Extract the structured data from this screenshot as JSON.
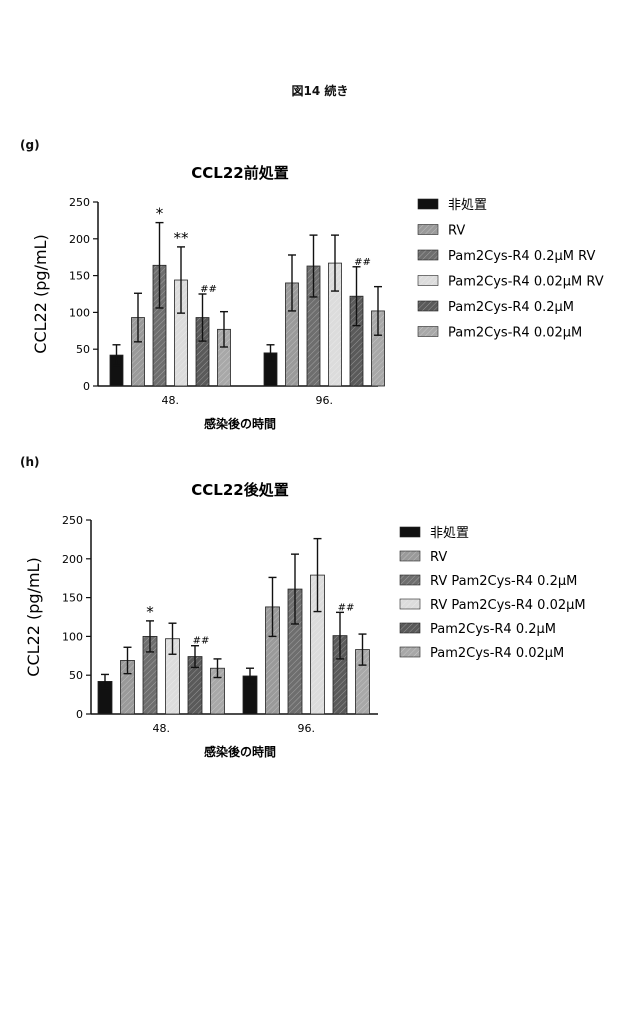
{
  "figure_title": "図14 続き",
  "panels": [
    {
      "label": "(g)"
    },
    {
      "label": "(h)"
    }
  ],
  "chart_data": [
    {
      "type": "bar",
      "title": "CCL22前処置",
      "xlabel": "感染後の時間",
      "ylabel": "CCL22 (pg/mL)",
      "ylim": [
        0,
        250
      ],
      "yticks": [
        0,
        50,
        100,
        150,
        200,
        250
      ],
      "categories": [
        "48.",
        "96."
      ],
      "legend_position": "right",
      "series": [
        {
          "name": "非処置",
          "values": [
            42,
            45
          ],
          "errors": [
            14,
            11
          ],
          "fill": "#111111",
          "annotations": [
            "",
            ""
          ]
        },
        {
          "name": "RV",
          "values": [
            93,
            140
          ],
          "errors": [
            33,
            38
          ],
          "fill": "#9a9a9a",
          "annotations": [
            "",
            ""
          ]
        },
        {
          "name": "Pam2Cys-R4 0.2μM RV",
          "values": [
            164,
            163
          ],
          "errors": [
            58,
            42
          ],
          "fill": "#6e6e6e",
          "annotations": [
            "*",
            ""
          ]
        },
        {
          "name": "Pam2Cys-R4 0.02μM RV",
          "values": [
            144,
            167
          ],
          "errors": [
            45,
            38
          ],
          "fill": "#dcdcdc",
          "annotations": [
            "**",
            ""
          ]
        },
        {
          "name": "Pam2Cys-R4 0.2μM",
          "values": [
            93,
            122
          ],
          "errors": [
            32,
            40
          ],
          "fill": "#5a5a5a",
          "annotations": [
            "##",
            "##"
          ]
        },
        {
          "name": "Pam2Cys-R4 0.02μM",
          "values": [
            77,
            102
          ],
          "errors": [
            24,
            33
          ],
          "fill": "#a8a8a8",
          "annotations": [
            "",
            ""
          ]
        }
      ]
    },
    {
      "type": "bar",
      "title": "CCL22後処置",
      "xlabel": "感染後の時間",
      "ylabel": "CCL22 (pg/mL)",
      "ylim": [
        0,
        250
      ],
      "yticks": [
        0,
        50,
        100,
        150,
        200,
        250
      ],
      "categories": [
        "48.",
        "96."
      ],
      "legend_position": "right",
      "series": [
        {
          "name": "非処置",
          "values": [
            42,
            49
          ],
          "errors": [
            9,
            10
          ],
          "fill": "#111111",
          "annotations": [
            "",
            ""
          ]
        },
        {
          "name": "RV",
          "values": [
            69,
            138
          ],
          "errors": [
            17,
            38
          ],
          "fill": "#9a9a9a",
          "annotations": [
            "",
            ""
          ]
        },
        {
          "name": "RV Pam2Cys-R4 0.2μM",
          "values": [
            100,
            161
          ],
          "errors": [
            20,
            45
          ],
          "fill": "#6e6e6e",
          "annotations": [
            "*",
            ""
          ]
        },
        {
          "name": "RV Pam2Cys-R4 0.02μM",
          "values": [
            97,
            179
          ],
          "errors": [
            20,
            47
          ],
          "fill": "#dcdcdc",
          "annotations": [
            "",
            ""
          ]
        },
        {
          "name": "Pam2Cys-R4 0.2μM",
          "values": [
            74,
            101
          ],
          "errors": [
            14,
            30
          ],
          "fill": "#5a5a5a",
          "annotations": [
            "##",
            "##"
          ]
        },
        {
          "name": "Pam2Cys-R4 0.02μM",
          "values": [
            59,
            83
          ],
          "errors": [
            12,
            20
          ],
          "fill": "#a8a8a8",
          "annotations": [
            "",
            ""
          ]
        }
      ]
    }
  ]
}
